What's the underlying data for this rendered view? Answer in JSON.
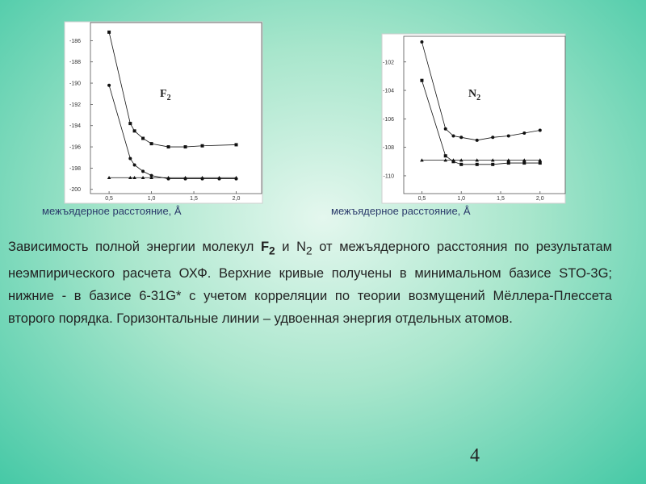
{
  "chart_data": [
    {
      "type": "line",
      "label": "F",
      "label_subscript": "2",
      "xlabel": "межъядерное расстояние, Å",
      "xlim": [
        0.28,
        2.3
      ],
      "ylim": [
        -200.4,
        -184.3
      ],
      "xticks": [
        {
          "value": 0.5,
          "label": "0,5"
        },
        {
          "value": 1.0,
          "label": "1,0"
        },
        {
          "value": 1.5,
          "label": "1,5"
        },
        {
          "value": 2.0,
          "label": "2,0"
        }
      ],
      "yticks": [
        -186,
        -188,
        -190,
        -192,
        -194,
        -196,
        -198,
        -200
      ],
      "series": [
        {
          "color": "#111111",
          "marker": "square",
          "x": [
            0.5,
            0.75,
            0.8,
            0.9,
            1.0,
            1.2,
            1.4,
            1.6,
            2.0
          ],
          "values": [
            -185.2,
            -193.8,
            -194.5,
            -195.2,
            -195.7,
            -196.0,
            -196.0,
            -195.9,
            -195.8
          ]
        },
        {
          "color": "#111111",
          "marker": "circle",
          "x": [
            0.5,
            0.75,
            0.8,
            0.9,
            1.0,
            1.2,
            1.4,
            1.6,
            1.8,
            2.0
          ],
          "values": [
            -190.2,
            -197.1,
            -197.7,
            -198.3,
            -198.7,
            -199.0,
            -199.0,
            -199.0,
            -199.0,
            -199.0
          ]
        },
        {
          "color": "#111111",
          "marker": "triangle",
          "x": [
            0.5,
            0.75,
            0.8,
            0.9,
            1.0,
            1.2,
            1.4,
            1.6,
            1.8,
            2.0
          ],
          "values": [
            -198.9,
            -198.9,
            -198.9,
            -198.9,
            -198.9,
            -198.9,
            -198.9,
            -198.9,
            -198.9,
            -198.9
          ]
        }
      ]
    },
    {
      "type": "line",
      "label": "N",
      "label_subscript": "2",
      "xlabel": "межъядерное расстояние, Å",
      "xlim": [
        0.27,
        2.32
      ],
      "ylim": [
        -111.25,
        -100.2
      ],
      "xticks": [
        {
          "value": 0.5,
          "label": "0,5"
        },
        {
          "value": 1.0,
          "label": "1,0"
        },
        {
          "value": 1.5,
          "label": "1,5"
        },
        {
          "value": 2.0,
          "label": "2,0"
        }
      ],
      "yticks": [
        -102,
        -104,
        -106,
        -108,
        -110
      ],
      "series": [
        {
          "color": "#111111",
          "marker": "circle",
          "x": [
            0.5,
            0.8,
            0.9,
            1.0,
            1.2,
            1.4,
            1.6,
            1.8,
            2.0
          ],
          "values": [
            -100.6,
            -106.7,
            -107.2,
            -107.3,
            -107.5,
            -107.3,
            -107.2,
            -107.0,
            -106.8
          ]
        },
        {
          "color": "#111111",
          "marker": "square",
          "x": [
            0.5,
            0.8,
            0.9,
            1.0,
            1.2,
            1.4,
            1.6,
            1.8,
            2.0
          ],
          "values": [
            -103.3,
            -108.6,
            -109.0,
            -109.2,
            -109.2,
            -109.2,
            -109.1,
            -109.1,
            -109.1
          ]
        },
        {
          "color": "#111111",
          "marker": "triangle",
          "x": [
            0.5,
            0.8,
            0.9,
            1.0,
            1.2,
            1.4,
            1.6,
            1.8,
            2.0
          ],
          "values": [
            -108.9,
            -108.9,
            -108.9,
            -108.9,
            -108.9,
            -108.9,
            -108.9,
            -108.9,
            -108.9
          ]
        }
      ]
    }
  ],
  "caption": [
    "Зависимость полной энергии молекул ",
    "F",
    "2",
    " и N",
    "2",
    " от межъядерного расстояния по результатам неэмпирического расчета ОХФ. Верхние кривые получены в минимальном базисе STO-3G; нижние - в базисе 6-31G* с учетом корреляции по теории возмущений Мёллера-Плессета второго порядка. Горизонтальные линии – удвоенная энергия отдельных атомов."
  ],
  "page_number": "4"
}
